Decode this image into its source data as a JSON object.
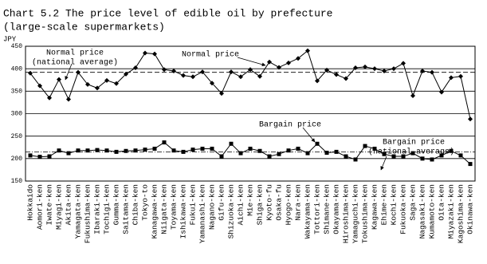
{
  "chart_data": {
    "type": "line",
    "title": "Chart 5.2 The price level of edible oil by prefecture",
    "subtitle": "(large-scale supermarkets)",
    "y_label": "JPY",
    "categories": [
      "Hokkaido",
      "Aomori-ken",
      "Iwate-ken",
      "Miyagi-ken",
      "Akita-ken",
      "Yamagata-ken",
      "Fukushima-ken",
      "Ibaraki-ken",
      "Tochigi-ken",
      "Gumma-ken",
      "Saitama-ken",
      "Chiba-ken",
      "Tokyo-to",
      "Kanagawa-ken",
      "Niigata-ken",
      "Toyama-ken",
      "Ishikawa-ken",
      "Fukui-ken",
      "Yamanashi-ken",
      "Nagano-ken",
      "Gifu-ken",
      "Shizuoka-ken",
      "Aichi-ken",
      "Mie-ken",
      "Shiga-ken",
      "Kyoto-fu",
      "Osaka-fu",
      "Hyogo-ken",
      "Nara-ken",
      "Wakayama-ken",
      "Tottori-ken",
      "Shimane-ken",
      "Okayama-ken",
      "Hiroshima-ken",
      "Yamaguchi-ken",
      "Tokushima-ken",
      "Kagawa-ken",
      "Ehime-ken",
      "Kochi-ken",
      "Fukuoka-ken",
      "Saga-ken",
      "Nagasaki-ken",
      "Kumamoto-ken",
      "Oita-ken",
      "Miyazaki-ken",
      "Kagoshima-ken",
      "Okinawa-ken"
    ],
    "series": [
      {
        "name": "Normal price",
        "color": "#000000",
        "marker": "diamond",
        "values": [
          390,
          362,
          335,
          376,
          332,
          392,
          365,
          357,
          374,
          367,
          388,
          402,
          435,
          433,
          398,
          395,
          385,
          382,
          393,
          368,
          345,
          393,
          382,
          398,
          383,
          415,
          403,
          413,
          423,
          440,
          373,
          397,
          387,
          378,
          402,
          404,
          400,
          395,
          400,
          412,
          340,
          395,
          392,
          348,
          380,
          383,
          288
        ]
      },
      {
        "name": "Bargain price",
        "color": "#000000",
        "marker": "square",
        "values": [
          207,
          204,
          205,
          218,
          212,
          218,
          218,
          219,
          218,
          215,
          217,
          218,
          220,
          222,
          236,
          218,
          215,
          220,
          222,
          222,
          205,
          233,
          212,
          222,
          217,
          205,
          210,
          218,
          222,
          212,
          233,
          213,
          215,
          205,
          198,
          228,
          222,
          210,
          205,
          205,
          212,
          200,
          198,
          207,
          217,
          207,
          188
        ]
      }
    ],
    "reference_lines": [
      {
        "value": 392,
        "label": [
          "Normal price",
          "(national average)"
        ]
      },
      {
        "value": 215,
        "label": [
          "Bargain price",
          "(national average)"
        ]
      }
    ],
    "ylim": [
      150,
      450
    ],
    "yticks": [
      150,
      200,
      250,
      300,
      350,
      400,
      450
    ],
    "grid": true
  }
}
